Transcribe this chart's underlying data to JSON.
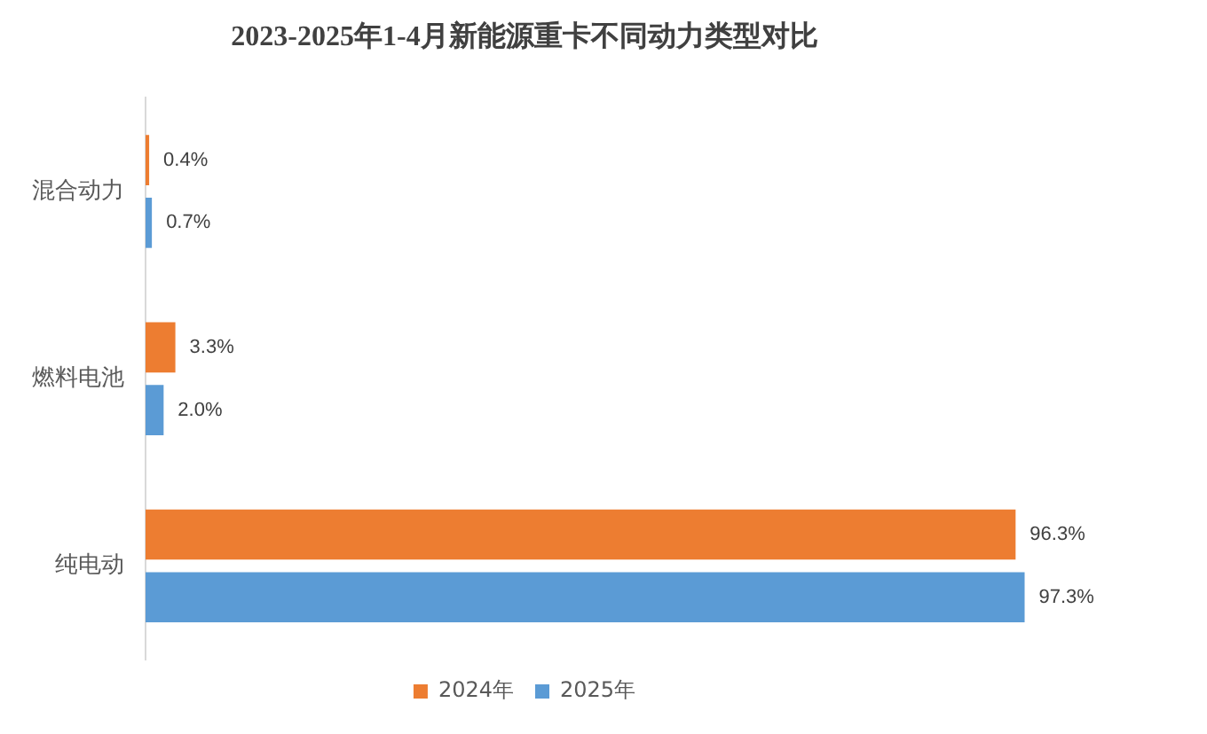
{
  "chart_data": {
    "type": "bar",
    "orientation": "horizontal",
    "title": "2023-2025年1-4月新能源重卡不同动力类型对比",
    "categories": [
      "混合动力",
      "燃料电池",
      "纯电动"
    ],
    "series": [
      {
        "name": "2024年",
        "color": "#ed7d31",
        "values": [
          0.4,
          3.3,
          96.3
        ],
        "value_labels": [
          "0.4%",
          "3.3%",
          "96.3%"
        ]
      },
      {
        "name": "2025年",
        "color": "#5b9bd5",
        "values": [
          0.7,
          2.0,
          97.3
        ],
        "value_labels": [
          "0.7%",
          "2.0%",
          "97.3%"
        ]
      }
    ],
    "tick_labels": "y",
    "legend": "bottom"
  }
}
